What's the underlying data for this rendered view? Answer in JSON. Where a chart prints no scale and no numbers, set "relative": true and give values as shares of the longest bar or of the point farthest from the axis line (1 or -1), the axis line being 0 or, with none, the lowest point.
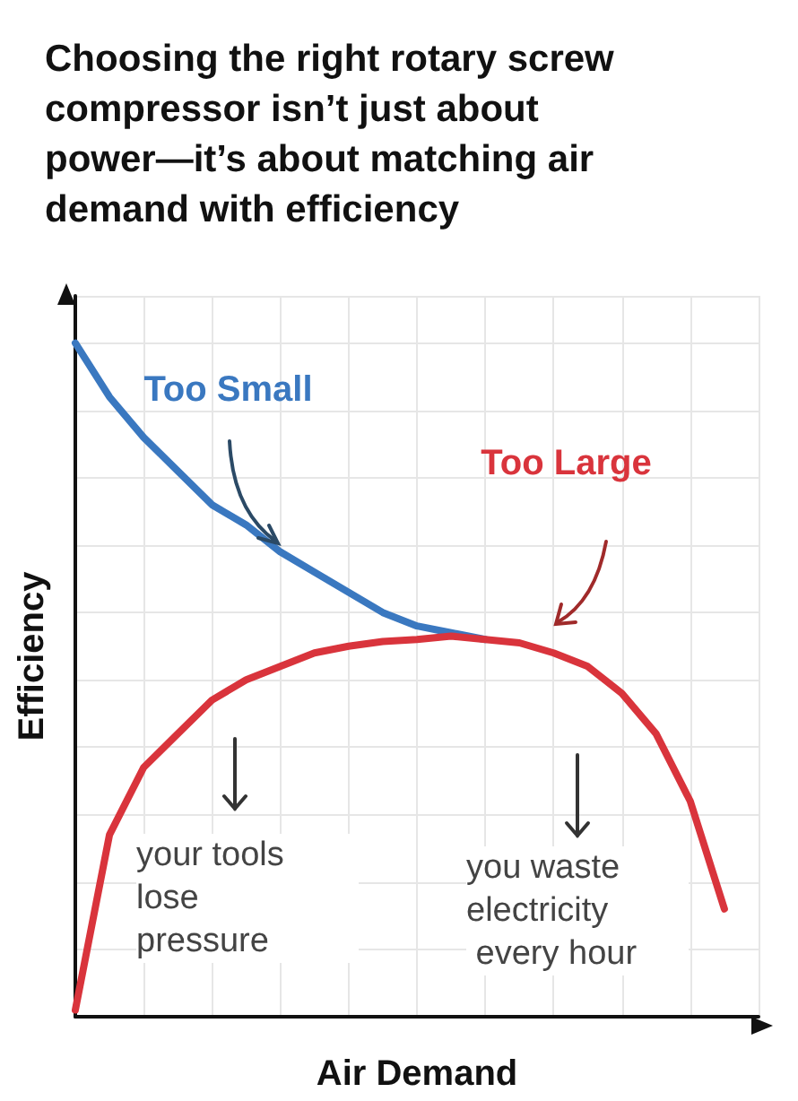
{
  "chart_data": {
    "type": "line",
    "title": "Choosing the right rotary screw compressor isn’t just about power—it’s about matching air demand with efficiency",
    "xlabel": "Air Demand",
    "ylabel": "Efficiency",
    "relative": true,
    "grid": true,
    "legend": false,
    "marker": "none",
    "line_style": "solid",
    "categories": [
      null,
      null,
      null,
      null,
      null,
      null,
      null,
      null,
      null,
      null,
      null,
      null,
      null,
      null,
      null,
      null,
      null,
      null,
      null,
      null,
      null
    ],
    "series": [
      {
        "name": "Too Small",
        "color": "#3a78c0",
        "values": [
          1.0,
          0.92,
          0.86,
          0.81,
          0.76,
          0.73,
          0.69,
          0.66,
          0.63,
          0.6,
          0.58,
          0.57,
          0.56,
          null,
          null,
          null,
          null,
          null,
          null,
          null,
          null
        ]
      },
      {
        "name": "Too Large",
        "color": "#d9343c",
        "values": [
          0.01,
          0.27,
          0.37,
          0.42,
          0.47,
          0.5,
          0.52,
          0.54,
          0.55,
          0.557,
          0.56,
          0.565,
          0.56,
          0.555,
          0.54,
          0.52,
          0.48,
          0.42,
          0.32,
          0.16,
          null
        ]
      }
    ],
    "annotations": [
      "your tools lose pressure",
      "you waste electricity every hour"
    ]
  }
}
